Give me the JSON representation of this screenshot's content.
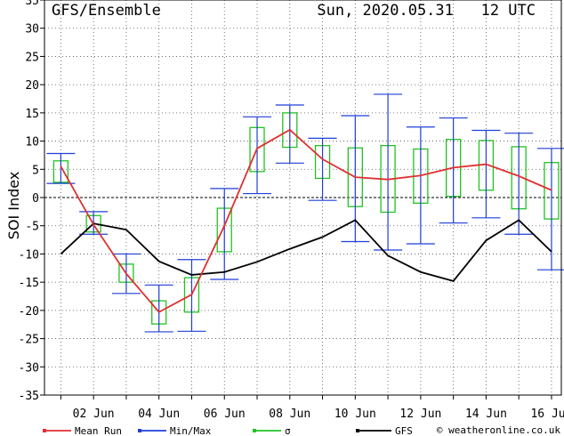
{
  "chart_data": {
    "type": "line",
    "title": "GFS/Ensemble",
    "subtitle": "Sun, 2020.05.31   12 UTC",
    "ylabel": "SOI Index",
    "xlabel": "",
    "ylim": [
      -35,
      35
    ],
    "yticks": [
      -35,
      -30,
      -25,
      -20,
      -15,
      -10,
      -5,
      0,
      5,
      10,
      15,
      20,
      25,
      30,
      35
    ],
    "xticks": [
      {
        "x": 2,
        "label": "02 Jun"
      },
      {
        "x": 4,
        "label": "04 Jun"
      },
      {
        "x": 6,
        "label": "06 Jun"
      },
      {
        "x": 8,
        "label": "08 Jun"
      },
      {
        "x": 10,
        "label": "10 Jun"
      },
      {
        "x": 12,
        "label": "12 Jun"
      },
      {
        "x": 14,
        "label": "14 Jun"
      },
      {
        "x": 16,
        "label": "16 Jun"
      }
    ],
    "grid": true,
    "x": [
      1,
      2,
      3,
      4,
      5,
      6,
      7,
      8,
      9,
      10,
      11,
      12,
      13,
      14,
      15,
      16
    ],
    "series": [
      {
        "name": "Mean Run",
        "color": "#e03030",
        "values": [
          5.5,
          -4.8,
          -13.5,
          -20.3,
          -17.2,
          -5.0,
          8.7,
          12.0,
          6.8,
          3.6,
          3.2,
          3.9,
          5.3,
          5.9,
          3.8,
          1.3
        ]
      },
      {
        "name": "GFS",
        "color": "#000000",
        "values": [
          -10.0,
          -4.6,
          -5.7,
          -11.3,
          -13.7,
          -13.2,
          -11.4,
          -9.1,
          -7.0,
          -4.0,
          -10.3,
          -13.2,
          -14.8,
          -7.6,
          -4.0,
          -9.6
        ]
      }
    ],
    "minmax": {
      "name": "Min/Max",
      "color": "#1f3fd6",
      "min": [
        2.5,
        -6.5,
        -17.0,
        -23.8,
        -23.7,
        -14.5,
        0.7,
        6.1,
        -0.5,
        -7.8,
        -9.3,
        -8.2,
        -4.5,
        -3.6,
        -6.5,
        -12.8
      ],
      "max": [
        7.8,
        -2.5,
        -10.0,
        -15.5,
        -11.0,
        1.6,
        14.3,
        16.4,
        10.5,
        14.5,
        18.3,
        12.5,
        14.1,
        11.9,
        11.4,
        8.7
      ]
    },
    "sigma": {
      "name": "σ",
      "color": "#22c322",
      "low": [
        2.7,
        -6.1,
        -15.0,
        -22.4,
        -20.3,
        -9.6,
        4.6,
        8.9,
        3.4,
        -1.6,
        -2.6,
        -1.0,
        0.2,
        1.3,
        -2.0,
        -3.8
      ],
      "high": [
        6.5,
        -3.2,
        -11.8,
        -18.3,
        -14.2,
        -1.9,
        12.4,
        15.0,
        9.2,
        8.8,
        9.2,
        8.6,
        10.3,
        10.1,
        9.0,
        6.2
      ]
    },
    "legend": [
      {
        "label": "Mean Run",
        "color": "#e03030",
        "marker": "dot-line"
      },
      {
        "label": "Min/Max",
        "color": "#1f3fd6",
        "marker": "dot-line"
      },
      {
        "label": "σ",
        "color": "#22c322",
        "marker": "dot-line"
      },
      {
        "label": "GFS",
        "color": "#000000",
        "marker": "dot-line"
      }
    ],
    "credit": "© weatheronline.co.uk"
  }
}
